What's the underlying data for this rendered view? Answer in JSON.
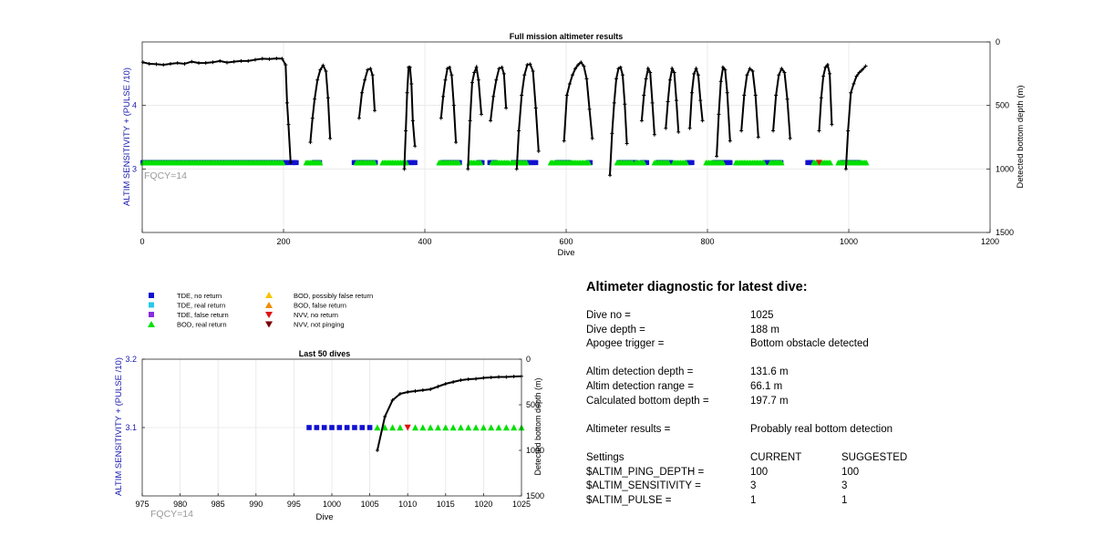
{
  "colors": {
    "tde_no_return": "#1010d0",
    "tde_real_return": "#27c9e8",
    "tde_false_return": "#8a2be2",
    "bod_real_return": "#00e000",
    "bod_possibly_false": "#f5c400",
    "bod_false_return": "#f08c00",
    "nvv_no_return": "#e01010",
    "nvv_not_pinging": "#7a0000",
    "left_axis": "#1a1ab0",
    "fqcy": "#9a9a9a"
  },
  "legend": {
    "tde_no_return": "TDE, no return",
    "tde_real_return": "TDE, real return",
    "tde_false_return": "TDE, false return",
    "bod_real_return": "BOD, real return",
    "bod_possibly_false": "BOD, possibly false return",
    "bod_false_return": "BOD, false return",
    "nvv_no_return": "NVV, no return",
    "nvv_not_pinging": "NVV, not pinging"
  },
  "diagnostic": {
    "title": "Altimeter diagnostic for latest dive:",
    "dive_no_label": "Dive no =",
    "dive_no": "1025",
    "dive_depth_label": "Dive depth =",
    "dive_depth": "188 m",
    "apogee_label": "Apogee trigger =",
    "apogee": "Bottom obstacle detected",
    "altim_det_depth_label": "Altim detection depth =",
    "altim_det_depth": "131.6 m",
    "altim_det_range_label": "Altim detection range =",
    "altim_det_range": "66.1 m",
    "calc_bottom_label": "Calculated bottom depth =",
    "calc_bottom": "197.7 m",
    "results_label": "Altimeter results =",
    "results": "Probably real bottom detection",
    "settings_label": "Settings",
    "current_label": "CURRENT",
    "suggested_label": "SUGGESTED",
    "ping_depth_label": "$ALTIM_PING_DEPTH =",
    "ping_depth_current": "100",
    "ping_depth_suggested": "100",
    "sensitivity_label": "$ALTIM_SENSITIVITY =",
    "sensitivity_current": "3",
    "sensitivity_suggested": "3",
    "pulse_label": "$ALTIM_PULSE =",
    "pulse_current": "1",
    "pulse_suggested": "1"
  },
  "chart_data": [
    {
      "type": "scatter",
      "title": "Full mission altimeter results",
      "xlabel": "Dive",
      "ylabel_left": "ALTIM SENSITIVITY + (PULSE /10)",
      "ylabel_right": "Detected bottom depth (m)",
      "annotation": "FQCY=14",
      "xlim": [
        0,
        1200
      ],
      "ylim_left": [
        2,
        5
      ],
      "ylim_right": [
        0,
        1500
      ],
      "right_axis_reversed": true,
      "xticks": [
        0,
        200,
        400,
        600,
        800,
        1000,
        1200
      ],
      "yticks_left": [
        3,
        4
      ],
      "yticks_right": [
        0,
        500,
        1000,
        1500
      ],
      "grid": true,
      "sensitivity_level": 3.1,
      "tde_dives": [
        [
          1,
          208
        ],
        [
          212,
          218
        ],
        [
          243,
          252
        ],
        [
          300,
          330
        ],
        [
          378,
          386
        ],
        [
          425,
          450
        ],
        [
          477,
          482
        ],
        [
          492,
          500
        ],
        [
          525,
          558
        ],
        [
          588,
          605
        ],
        [
          632,
          635
        ],
        [
          675,
          700
        ],
        [
          708,
          715
        ],
        [
          730,
          748
        ],
        [
          772,
          778
        ],
        [
          810,
          833
        ],
        [
          882,
          905
        ],
        [
          942,
          948
        ],
        [
          990,
          1015
        ]
      ],
      "bod_dives": [
        [
          1,
          200
        ],
        [
          232,
          252
        ],
        [
          303,
          330
        ],
        [
          340,
          375
        ],
        [
          420,
          448
        ],
        [
          463,
          480
        ],
        [
          495,
          520
        ],
        [
          522,
          545
        ],
        [
          578,
          600
        ],
        [
          602,
          632
        ],
        [
          672,
          695
        ],
        [
          698,
          710
        ],
        [
          725,
          745
        ],
        [
          752,
          770
        ],
        [
          798,
          822
        ],
        [
          840,
          880
        ],
        [
          889,
          905
        ],
        [
          950,
          960
        ],
        [
          962,
          975
        ],
        [
          985,
          1025
        ]
      ],
      "nvv_dives": [
        958
      ],
      "bottom_depth_segments": [
        [
          [
            1,
            160
          ],
          [
            10,
            172
          ],
          [
            20,
            175
          ],
          [
            30,
            180
          ],
          [
            40,
            172
          ],
          [
            50,
            166
          ],
          [
            60,
            172
          ],
          [
            70,
            155
          ],
          [
            80,
            166
          ],
          [
            90,
            165
          ],
          [
            100,
            160
          ],
          [
            110,
            150
          ],
          [
            120,
            162
          ],
          [
            130,
            155
          ],
          [
            140,
            150
          ],
          [
            150,
            150
          ],
          [
            160,
            140
          ],
          [
            170,
            132
          ],
          [
            180,
            135
          ],
          [
            190,
            130
          ],
          [
            198,
            132
          ],
          [
            203,
            180
          ],
          [
            205,
            480
          ],
          [
            207,
            650
          ],
          [
            210,
            950
          ]
        ],
        [
          [
            238,
            790
          ],
          [
            241,
            600
          ],
          [
            244,
            450
          ],
          [
            248,
            300
          ],
          [
            252,
            220
          ],
          [
            256,
            185
          ],
          [
            260,
            230
          ],
          [
            263,
            440
          ],
          [
            266,
            760
          ]
        ],
        [
          [
            307,
            600
          ],
          [
            311,
            400
          ],
          [
            315,
            300
          ],
          [
            319,
            220
          ],
          [
            323,
            210
          ],
          [
            326,
            260
          ],
          [
            329,
            540
          ]
        ],
        [
          [
            371,
            1000
          ],
          [
            373,
            700
          ],
          [
            375,
            400
          ],
          [
            377,
            200
          ],
          [
            379,
            200
          ],
          [
            381,
            330
          ],
          [
            383,
            620
          ],
          [
            386,
            820
          ]
        ],
        [
          [
            423,
            600
          ],
          [
            426,
            430
          ],
          [
            429,
            300
          ],
          [
            432,
            210
          ],
          [
            435,
            200
          ],
          [
            438,
            260
          ],
          [
            441,
            500
          ],
          [
            444,
            790
          ]
        ],
        [
          [
            461,
            1000
          ],
          [
            464,
            620
          ],
          [
            467,
            320
          ],
          [
            470,
            240
          ],
          [
            473,
            200
          ],
          [
            476,
            300
          ],
          [
            480,
            570
          ]
        ],
        [
          [
            493,
            620
          ],
          [
            497,
            430
          ],
          [
            501,
            300
          ],
          [
            505,
            210
          ],
          [
            509,
            200
          ],
          [
            512,
            250
          ],
          [
            515,
            520
          ]
        ],
        [
          [
            530,
            1000
          ],
          [
            533,
            700
          ],
          [
            537,
            420
          ],
          [
            541,
            260
          ],
          [
            545,
            180
          ],
          [
            549,
            175
          ],
          [
            553,
            230
          ],
          [
            557,
            520
          ],
          [
            561,
            860
          ]
        ],
        [
          [
            597,
            780
          ],
          [
            601,
            420
          ],
          [
            605,
            330
          ],
          [
            609,
            260
          ],
          [
            613,
            210
          ],
          [
            617,
            180
          ],
          [
            621,
            160
          ],
          [
            625,
            190
          ],
          [
            629,
            290
          ],
          [
            633,
            530
          ],
          [
            637,
            760
          ]
        ],
        [
          [
            662,
            1050
          ],
          [
            665,
            720
          ],
          [
            668,
            480
          ],
          [
            671,
            290
          ],
          [
            674,
            210
          ],
          [
            677,
            200
          ],
          [
            680,
            260
          ],
          [
            683,
            490
          ],
          [
            686,
            800
          ]
        ],
        [
          [
            707,
            620
          ],
          [
            710,
            420
          ],
          [
            713,
            290
          ],
          [
            716,
            210
          ],
          [
            719,
            240
          ],
          [
            722,
            480
          ],
          [
            725,
            730
          ]
        ],
        [
          [
            741,
            680
          ],
          [
            744,
            470
          ],
          [
            747,
            300
          ],
          [
            750,
            210
          ],
          [
            753,
            240
          ],
          [
            756,
            460
          ],
          [
            759,
            710
          ]
        ],
        [
          [
            775,
            680
          ],
          [
            778,
            400
          ],
          [
            781,
            250
          ],
          [
            784,
            210
          ],
          [
            787,
            260
          ],
          [
            790,
            460
          ],
          [
            793,
            620
          ]
        ],
        [
          [
            813,
            900
          ],
          [
            816,
            570
          ],
          [
            819,
            310
          ],
          [
            822,
            200
          ],
          [
            825,
            220
          ],
          [
            828,
            400
          ],
          [
            832,
            780
          ]
        ],
        [
          [
            848,
            700
          ],
          [
            852,
            420
          ],
          [
            856,
            260
          ],
          [
            860,
            210
          ],
          [
            864,
            230
          ],
          [
            868,
            420
          ],
          [
            872,
            750
          ]
        ],
        [
          [
            893,
            700
          ],
          [
            897,
            420
          ],
          [
            901,
            260
          ],
          [
            905,
            210
          ],
          [
            909,
            240
          ],
          [
            913,
            450
          ],
          [
            917,
            760
          ]
        ],
        [
          [
            958,
            700
          ],
          [
            961,
            440
          ],
          [
            964,
            270
          ],
          [
            967,
            200
          ],
          [
            970,
            180
          ],
          [
            973,
            250
          ],
          [
            976,
            650
          ]
        ],
        [
          [
            996,
            1000
          ],
          [
            999,
            700
          ],
          [
            1003,
            400
          ],
          [
            1007,
            330
          ],
          [
            1011,
            270
          ],
          [
            1015,
            240
          ],
          [
            1019,
            220
          ],
          [
            1024,
            190
          ]
        ]
      ]
    },
    {
      "type": "scatter",
      "title": "Last 50 dives",
      "xlabel": "Dive",
      "ylabel_left": "ALTIM SENSITIVITY + (PULSE /10)",
      "ylabel_right": "Detected bottom depth (m)",
      "annotation": "FQCY=14",
      "xlim": [
        975,
        1025
      ],
      "ylim_left": [
        3.0,
        3.2
      ],
      "ylim_right": [
        0,
        1500
      ],
      "right_axis_reversed": true,
      "xticks": [
        975,
        980,
        985,
        990,
        995,
        1000,
        1005,
        1010,
        1015,
        1020,
        1025
      ],
      "yticks_left": [
        3.1,
        3.2
      ],
      "yticks_right": [
        0,
        500,
        1000,
        1500
      ],
      "grid": true,
      "tde_no_return": [
        997,
        998,
        999,
        1000,
        1001,
        1002,
        1003,
        1004,
        1005
      ],
      "bod_real_return": [
        1006,
        1007,
        1008,
        1009,
        1011,
        1012,
        1013,
        1014,
        1015,
        1016,
        1017,
        1018,
        1019,
        1020,
        1021,
        1022,
        1023,
        1024,
        1025
      ],
      "nvv_no_return": [
        1010
      ],
      "sensitivity_level": 3.1,
      "bottom_depth_x": [
        1006,
        1007,
        1008,
        1009,
        1010,
        1011,
        1012,
        1013,
        1014,
        1015,
        1016,
        1017,
        1018,
        1019,
        1020,
        1021,
        1022,
        1023,
        1024,
        1025
      ],
      "bottom_depth_y": [
        1000,
        630,
        450,
        380,
        360,
        350,
        340,
        330,
        300,
        270,
        250,
        230,
        220,
        215,
        205,
        200,
        195,
        195,
        190,
        188
      ]
    }
  ]
}
